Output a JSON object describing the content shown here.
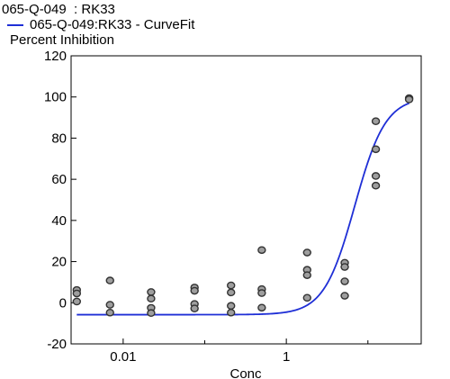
{
  "chart_data": {
    "type": "scatter",
    "title": "065-Q-049  : RK33",
    "legend": {
      "line_label": "065-Q-049:RK33 - CurveFit",
      "line_color": "#1f2fd6"
    },
    "ylabel": "Percent Inhibition",
    "xlabel": "Conc",
    "x_scale": "log",
    "xlim": [
      0.0023,
      45
    ],
    "ylim": [
      -20,
      120
    ],
    "y_ticks": [
      "120",
      "100",
      "80",
      "60",
      "40",
      "20",
      "0",
      "-20"
    ],
    "y_tick_values": [
      120,
      100,
      80,
      60,
      40,
      20,
      0,
      -20
    ],
    "x_ticks": [
      "0.01",
      "1"
    ],
    "x_tick_values": [
      0.01,
      1
    ],
    "x_minor_ticks": [
      0.1,
      10
    ],
    "grid": false,
    "point_color": "#9e9e9e",
    "points": [
      {
        "x": 0.0027,
        "y": 6.2
      },
      {
        "x": 0.0027,
        "y": 4.5
      },
      {
        "x": 0.0027,
        "y": 0.6
      },
      {
        "x": 0.0069,
        "y": 10.8
      },
      {
        "x": 0.0069,
        "y": -1.0
      },
      {
        "x": 0.0069,
        "y": -4.8
      },
      {
        "x": 0.022,
        "y": 5.2
      },
      {
        "x": 0.022,
        "y": 2.0
      },
      {
        "x": 0.022,
        "y": -2.5
      },
      {
        "x": 0.022,
        "y": -5.0
      },
      {
        "x": 0.075,
        "y": 7.4
      },
      {
        "x": 0.075,
        "y": 5.8
      },
      {
        "x": 0.075,
        "y": -0.6
      },
      {
        "x": 0.075,
        "y": -2.8
      },
      {
        "x": 0.21,
        "y": 8.4
      },
      {
        "x": 0.21,
        "y": 5.0
      },
      {
        "x": 0.21,
        "y": -1.5
      },
      {
        "x": 0.21,
        "y": -4.8
      },
      {
        "x": 0.5,
        "y": 25.6
      },
      {
        "x": 0.5,
        "y": 6.6
      },
      {
        "x": 0.5,
        "y": 4.7
      },
      {
        "x": 0.5,
        "y": -2.4
      },
      {
        "x": 1.8,
        "y": 24.4
      },
      {
        "x": 1.8,
        "y": 16.0
      },
      {
        "x": 1.8,
        "y": 13.4
      },
      {
        "x": 1.8,
        "y": 2.4
      },
      {
        "x": 5.2,
        "y": 19.4
      },
      {
        "x": 5.2,
        "y": 17.4
      },
      {
        "x": 5.2,
        "y": 10.4
      },
      {
        "x": 5.2,
        "y": 3.4
      },
      {
        "x": 12.5,
        "y": 88.2
      },
      {
        "x": 12.5,
        "y": 74.6
      },
      {
        "x": 12.5,
        "y": 61.6
      },
      {
        "x": 12.5,
        "y": 56.9
      },
      {
        "x": 32,
        "y": 99.4
      },
      {
        "x": 32,
        "y": 98.8
      }
    ],
    "curve": {
      "x_from": 0.0027,
      "x_to": 32,
      "bottom": -5.8,
      "top": 100,
      "ec50": 6.9,
      "hill": 2.3
    }
  }
}
